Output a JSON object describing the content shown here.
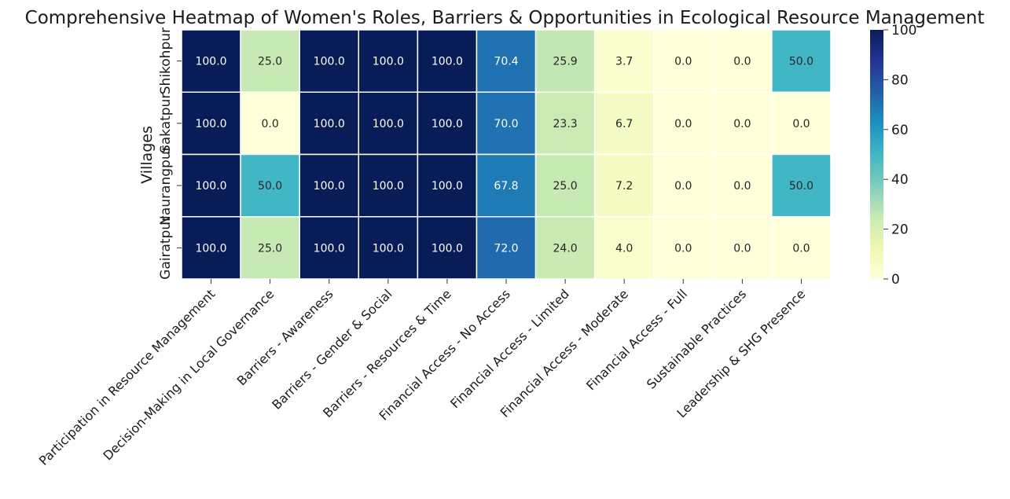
{
  "chart_data": {
    "type": "heatmap",
    "title": "Comprehensive Heatmap of Women's Roles, Barriers & Opportunities in Ecological Resource Management",
    "ylabel": "Villages",
    "xlabel": "",
    "rows": [
      "Shikohpur",
      "Sakatpur",
      "Naurangpur",
      "Gairatpur"
    ],
    "columns": [
      "Participation in Resource Management",
      "Decision-Making in Local Governance",
      "Barriers - Awareness",
      "Barriers - Gender & Social",
      "Barriers - Resources & Time",
      "Financial Access - No Access",
      "Financial Access - Limited",
      "Financial Access - Moderate",
      "Financial Access - Full",
      "Sustainable Practices",
      "Leadership & SHG Presence"
    ],
    "values": [
      [
        100.0,
        25.0,
        100.0,
        100.0,
        100.0,
        70.4,
        25.9,
        3.7,
        0.0,
        0.0,
        50.0
      ],
      [
        100.0,
        0.0,
        100.0,
        100.0,
        100.0,
        70.0,
        23.3,
        6.7,
        0.0,
        0.0,
        0.0
      ],
      [
        100.0,
        50.0,
        100.0,
        100.0,
        100.0,
        67.8,
        25.0,
        7.2,
        0.0,
        0.0,
        50.0
      ],
      [
        100.0,
        25.0,
        100.0,
        100.0,
        100.0,
        72.0,
        24.0,
        4.0,
        0.0,
        0.0,
        0.0
      ]
    ],
    "value_format": "0.0",
    "colormap": "YlGnBu",
    "colorbar": {
      "range": [
        0,
        100
      ],
      "ticks": [
        "0",
        "20",
        "40",
        "60",
        "80",
        "100"
      ]
    },
    "grid": false,
    "legend": "colorbar-right"
  }
}
